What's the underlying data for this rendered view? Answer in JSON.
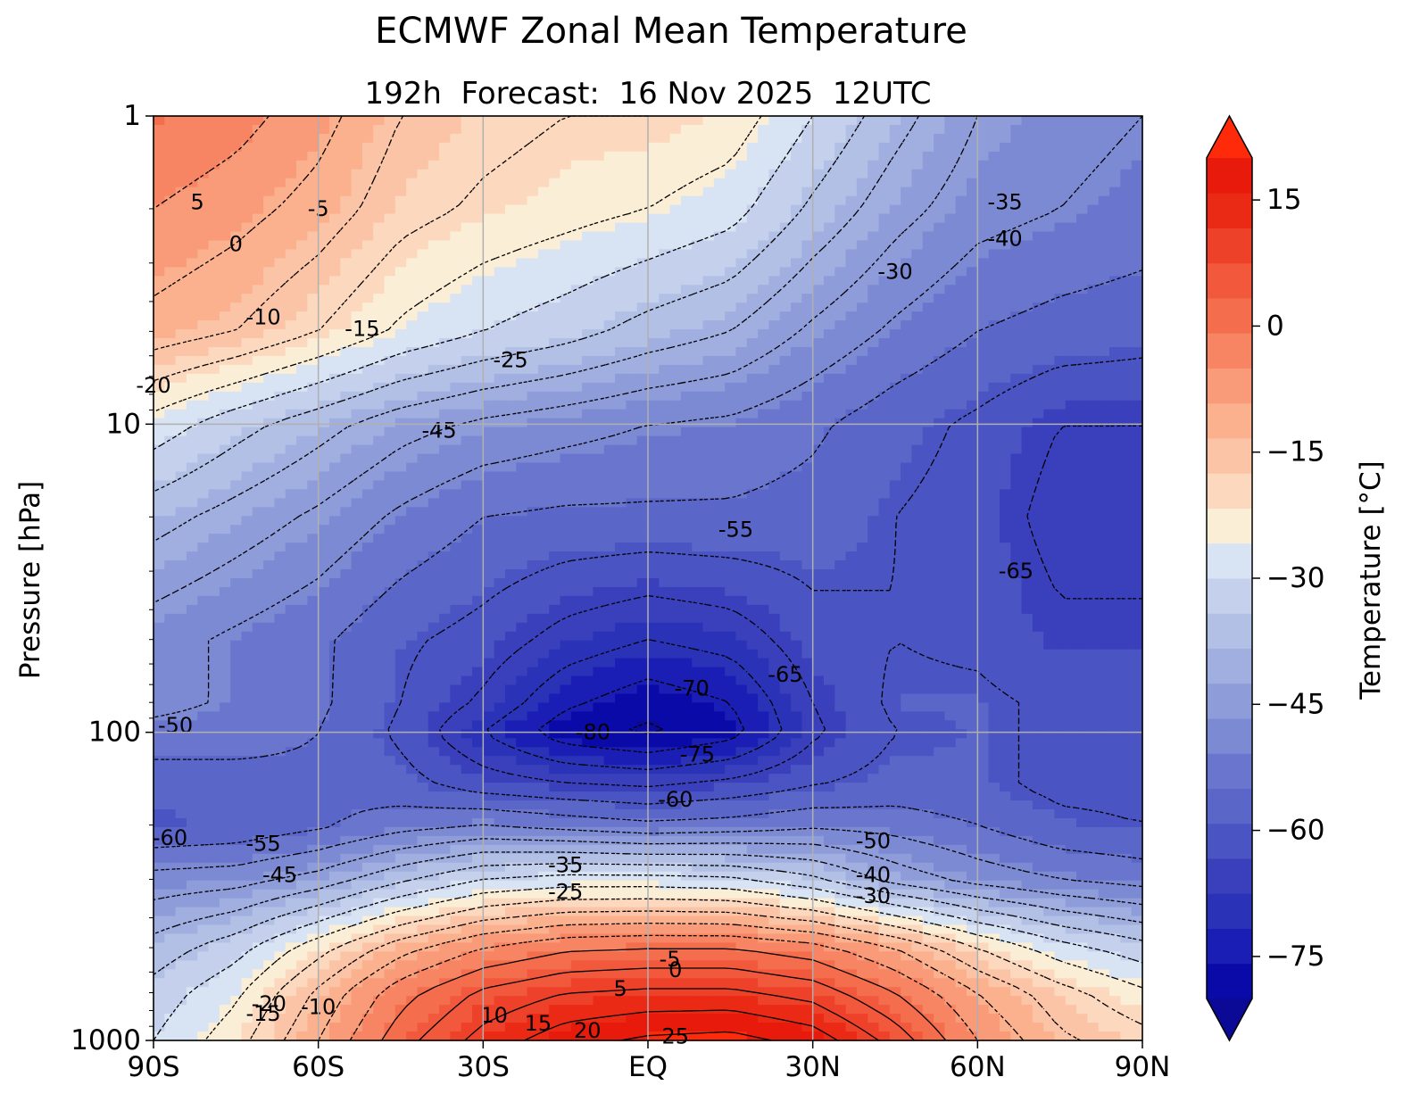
{
  "chart_data": {
    "type": "contour",
    "title": "ECMWF Zonal Mean Temperature",
    "subtitle": "192h  Forecast:  16 Nov 2025  12UTC",
    "xlabel": "",
    "ylabel": "Pressure [hPa]",
    "colorbar_label": "Temperature [°C]",
    "x_ticks": [
      {
        "lat": -90,
        "label": "90S"
      },
      {
        "lat": -60,
        "label": "60S"
      },
      {
        "lat": -30,
        "label": "30S"
      },
      {
        "lat": 0,
        "label": "EQ"
      },
      {
        "lat": 30,
        "label": "30N"
      },
      {
        "lat": 60,
        "label": "60N"
      },
      {
        "lat": 90,
        "label": "90N"
      }
    ],
    "y_ticks": [
      {
        "p": 1,
        "label": "1"
      },
      {
        "p": 10,
        "label": "10"
      },
      {
        "p": 100,
        "label": "100"
      },
      {
        "p": 1000,
        "label": "1000"
      }
    ],
    "xlim": [
      -90,
      90
    ],
    "ylim_hpa": [
      1000,
      1
    ],
    "y_scale": "log",
    "grid": true,
    "colorbar_ticks": [
      15,
      0,
      -15,
      -30,
      -45,
      -60,
      -75
    ],
    "colorbar_range": [
      -80,
      20
    ],
    "contour_interval": 5,
    "contour_labels": [
      {
        "lat": -82,
        "p": 1.9,
        "value": 5
      },
      {
        "lat": -75,
        "p": 2.6,
        "value": 0
      },
      {
        "lat": -60,
        "p": 2.0,
        "value": -5
      },
      {
        "lat": -70,
        "p": 4.5,
        "value": -10
      },
      {
        "lat": -52,
        "p": 4.9,
        "value": -15
      },
      {
        "lat": -90,
        "p": 7.5,
        "value": -20
      },
      {
        "lat": -25,
        "p": 6.2,
        "value": -25
      },
      {
        "lat": 45,
        "p": 3.2,
        "value": -30
      },
      {
        "lat": 65,
        "p": 1.9,
        "value": -35
      },
      {
        "lat": 65,
        "p": 2.5,
        "value": -40
      },
      {
        "lat": -38,
        "p": 10.5,
        "value": -45
      },
      {
        "lat": -86,
        "p": 95,
        "value": -50
      },
      {
        "lat": 16,
        "p": 22,
        "value": -55
      },
      {
        "lat": -70,
        "p": 230,
        "value": -55
      },
      {
        "lat": -67,
        "p": 290,
        "value": -45
      },
      {
        "lat": -87,
        "p": 220,
        "value": -60
      },
      {
        "lat": 5,
        "p": 165,
        "value": -60
      },
      {
        "lat": 25,
        "p": 65,
        "value": -65
      },
      {
        "lat": 67,
        "p": 30,
        "value": -65
      },
      {
        "lat": 8,
        "p": 72,
        "value": -70
      },
      {
        "lat": 9,
        "p": 118,
        "value": -75
      },
      {
        "lat": -10,
        "p": 100,
        "value": -80
      },
      {
        "lat": -15,
        "p": 270,
        "value": -35
      },
      {
        "lat": -15,
        "p": 330,
        "value": -25
      },
      {
        "lat": 41,
        "p": 225,
        "value": -50
      },
      {
        "lat": 41,
        "p": 290,
        "value": -40
      },
      {
        "lat": 41,
        "p": 340,
        "value": -30
      },
      {
        "lat": 4,
        "p": 545,
        "value": -5
      },
      {
        "lat": 5,
        "p": 590,
        "value": 0
      },
      {
        "lat": -5,
        "p": 680,
        "value": 5
      },
      {
        "lat": -60,
        "p": 780,
        "value": -10
      },
      {
        "lat": -69,
        "p": 760,
        "value": -20
      },
      {
        "lat": -70,
        "p": 820,
        "value": -15
      },
      {
        "lat": -28,
        "p": 830,
        "value": 10
      },
      {
        "lat": -20,
        "p": 880,
        "value": 15
      },
      {
        "lat": -11,
        "p": 930,
        "value": 20
      },
      {
        "lat": 5,
        "p": 970,
        "value": 25
      }
    ],
    "temperature_grid": {
      "lat": [
        -90,
        -75,
        -60,
        -45,
        -30,
        -15,
        0,
        15,
        30,
        45,
        60,
        75,
        90
      ],
      "p": [
        1,
        2,
        5,
        10,
        20,
        50,
        80,
        100,
        150,
        200,
        300,
        500,
        700,
        1000
      ],
      "t": [
        [
          0,
          -3,
          -8,
          -15,
          -18,
          -20,
          -20,
          -22,
          -30,
          -38,
          -45,
          -48,
          -50
        ],
        [
          -5,
          -8,
          -12,
          -18,
          -21,
          -23,
          -25,
          -28,
          -36,
          -43,
          -48,
          -50,
          -52
        ],
        [
          -12,
          -15,
          -20,
          -26,
          -30,
          -33,
          -37,
          -40,
          -46,
          -51,
          -55,
          -57,
          -58
        ],
        [
          -27,
          -33,
          -38,
          -43,
          -46,
          -48,
          -50,
          -51,
          -54,
          -58,
          -61,
          -65,
          -65
        ],
        [
          -38,
          -42,
          -46,
          -51,
          -55,
          -56,
          -56,
          -56,
          -57,
          -60,
          -62,
          -67,
          -67
        ],
        [
          -48,
          -51,
          -54,
          -59,
          -62,
          -67,
          -70,
          -68,
          -62,
          -60,
          -61,
          -64,
          -64
        ],
        [
          -48,
          -51,
          -54,
          -60,
          -66,
          -74,
          -78,
          -75,
          -65,
          -59,
          -59,
          -61,
          -61
        ],
        [
          -52,
          -53,
          -55,
          -61,
          -70,
          -78,
          -81,
          -77,
          -66,
          -60,
          -59,
          -61,
          -61
        ],
        [
          -58,
          -57,
          -56,
          -58,
          -62,
          -64,
          -65,
          -63,
          -60,
          -58,
          -59,
          -61,
          -61
        ],
        [
          -60,
          -59,
          -56,
          -52,
          -50,
          -52,
          -54,
          -53,
          -51,
          -52,
          -55,
          -59,
          -60
        ],
        [
          -48,
          -47,
          -43,
          -36,
          -30,
          -28,
          -28,
          -29,
          -34,
          -42,
          -47,
          -50,
          -52
        ],
        [
          -38,
          -32,
          -22,
          -12,
          -5,
          -1,
          0,
          0,
          -3,
          -10,
          -20,
          -28,
          -33
        ],
        [
          -33,
          -26,
          -14,
          -2,
          6,
          10,
          11,
          11,
          8,
          0,
          -10,
          -18,
          -24
        ],
        [
          -30,
          -22,
          -10,
          3,
          12,
          18,
          21,
          22,
          18,
          8,
          -5,
          -14,
          -18
        ]
      ]
    }
  },
  "colors": {
    "palette": [
      "#0a0aa8",
      "#1a1eb4",
      "#2a32b8",
      "#3a40bc",
      "#4a54c2",
      "#5a66c8",
      "#6a76ce",
      "#7c8ad4",
      "#8e9cda",
      "#a0aee0",
      "#b2c0e6",
      "#c4d0ec",
      "#d8e4f4",
      "#fbeed6",
      "#fcd9be",
      "#fcc4a6",
      "#fbb08e",
      "#f99a78",
      "#f78462",
      "#f46e4e",
      "#f1583c",
      "#ee412a",
      "#eb2a16",
      "#e81a0c"
    ],
    "under": "#0a0a96",
    "over": "#ff2a0a",
    "grid": "#b0b0b0"
  }
}
